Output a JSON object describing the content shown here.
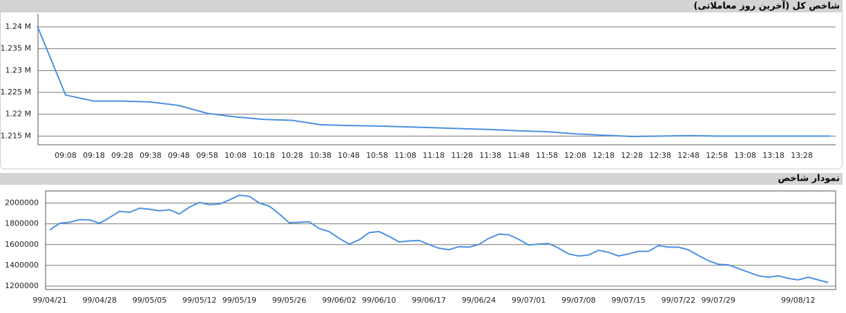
{
  "chart_data": [
    {
      "type": "line",
      "title": "شاخص کل (آخرین روز معاملاتی)",
      "categories": [
        null,
        "09:08",
        "09:18",
        "09:28",
        "09:38",
        "09:48",
        "09:58",
        "10:08",
        "10:18",
        "10:28",
        "10:38",
        "10:48",
        "10:58",
        "11:08",
        "11:18",
        "11:28",
        "11:38",
        "11:48",
        "11:58",
        "12:08",
        "12:18",
        "12:28",
        "12:38",
        "12:48",
        "12:58",
        "13:08",
        "13:18",
        "13:28",
        null
      ],
      "series": [
        {
          "color": "#4a90e2",
          "values": [
            1240200,
            1224400,
            1223000,
            1223000,
            1222800,
            1222000,
            1220200,
            1219400,
            1218800,
            1218600,
            1217600,
            1217400,
            1217300,
            1217100,
            1216900,
            1216700,
            1216500,
            1216200,
            1216000,
            1215500,
            1215200,
            1214900,
            1215000,
            1215100,
            1215000,
            1215000,
            1215000,
            1215000,
            1215000
          ]
        }
      ],
      "ylim": [
        1213000,
        1243000
      ],
      "yticks": [
        {
          "value": 1215000,
          "label": "1.215 M"
        },
        {
          "value": 1220000,
          "label": "1.22 M"
        },
        {
          "value": 1225000,
          "label": "1.225 M"
        },
        {
          "value": 1230000,
          "label": "1.23 M"
        },
        {
          "value": 1235000,
          "label": "1.235 M"
        },
        {
          "value": 1240000,
          "label": "1.24 M"
        }
      ],
      "grid": true
    },
    {
      "type": "line",
      "title": "نمودار شاخص",
      "categories": [
        "99/04/21",
        null,
        null,
        null,
        null,
        "99/04/28",
        null,
        null,
        null,
        null,
        "99/05/05",
        null,
        null,
        null,
        null,
        "99/05/12",
        null,
        null,
        null,
        "99/05/19",
        null,
        null,
        null,
        null,
        "99/05/26",
        null,
        null,
        null,
        null,
        "99/06/02",
        null,
        null,
        null,
        "99/06/10",
        null,
        null,
        null,
        null,
        "99/06/17",
        null,
        null,
        null,
        null,
        "99/06/24",
        null,
        null,
        null,
        null,
        "99/07/01",
        null,
        null,
        null,
        null,
        "99/07/08",
        null,
        null,
        null,
        null,
        "99/07/15",
        null,
        null,
        null,
        null,
        "99/07/22",
        null,
        null,
        null,
        "99/07/29",
        null,
        null,
        null,
        null,
        null,
        null,
        null,
        "99/08/12",
        null,
        null,
        null
      ],
      "series": [
        {
          "color": "#4a90e2",
          "values": [
            1740000,
            1805000,
            1815000,
            1840000,
            1838000,
            1805000,
            1860000,
            1920000,
            1910000,
            1950000,
            1940000,
            1925000,
            1935000,
            1895000,
            1960000,
            2005000,
            1985000,
            1990000,
            2030000,
            2075000,
            2065000,
            2000000,
            1970000,
            1895000,
            1810000,
            1815000,
            1820000,
            1755000,
            1725000,
            1660000,
            1605000,
            1645000,
            1715000,
            1725000,
            1680000,
            1625000,
            1635000,
            1640000,
            1600000,
            1565000,
            1550000,
            1580000,
            1575000,
            1600000,
            1660000,
            1700000,
            1695000,
            1650000,
            1595000,
            1605000,
            1610000,
            1565000,
            1510000,
            1490000,
            1500000,
            1545000,
            1525000,
            1490000,
            1510000,
            1535000,
            1535000,
            1590000,
            1575000,
            1575000,
            1550000,
            1495000,
            1445000,
            1410000,
            1405000,
            1370000,
            1335000,
            1300000,
            1285000,
            1300000,
            1275000,
            1260000,
            1285000,
            1260000,
            1235000
          ]
        }
      ],
      "ylim": [
        1167000,
        2116000
      ],
      "yticks": [
        1200000,
        1400000,
        1600000,
        1800000,
        2000000
      ],
      "grid": true
    }
  ]
}
